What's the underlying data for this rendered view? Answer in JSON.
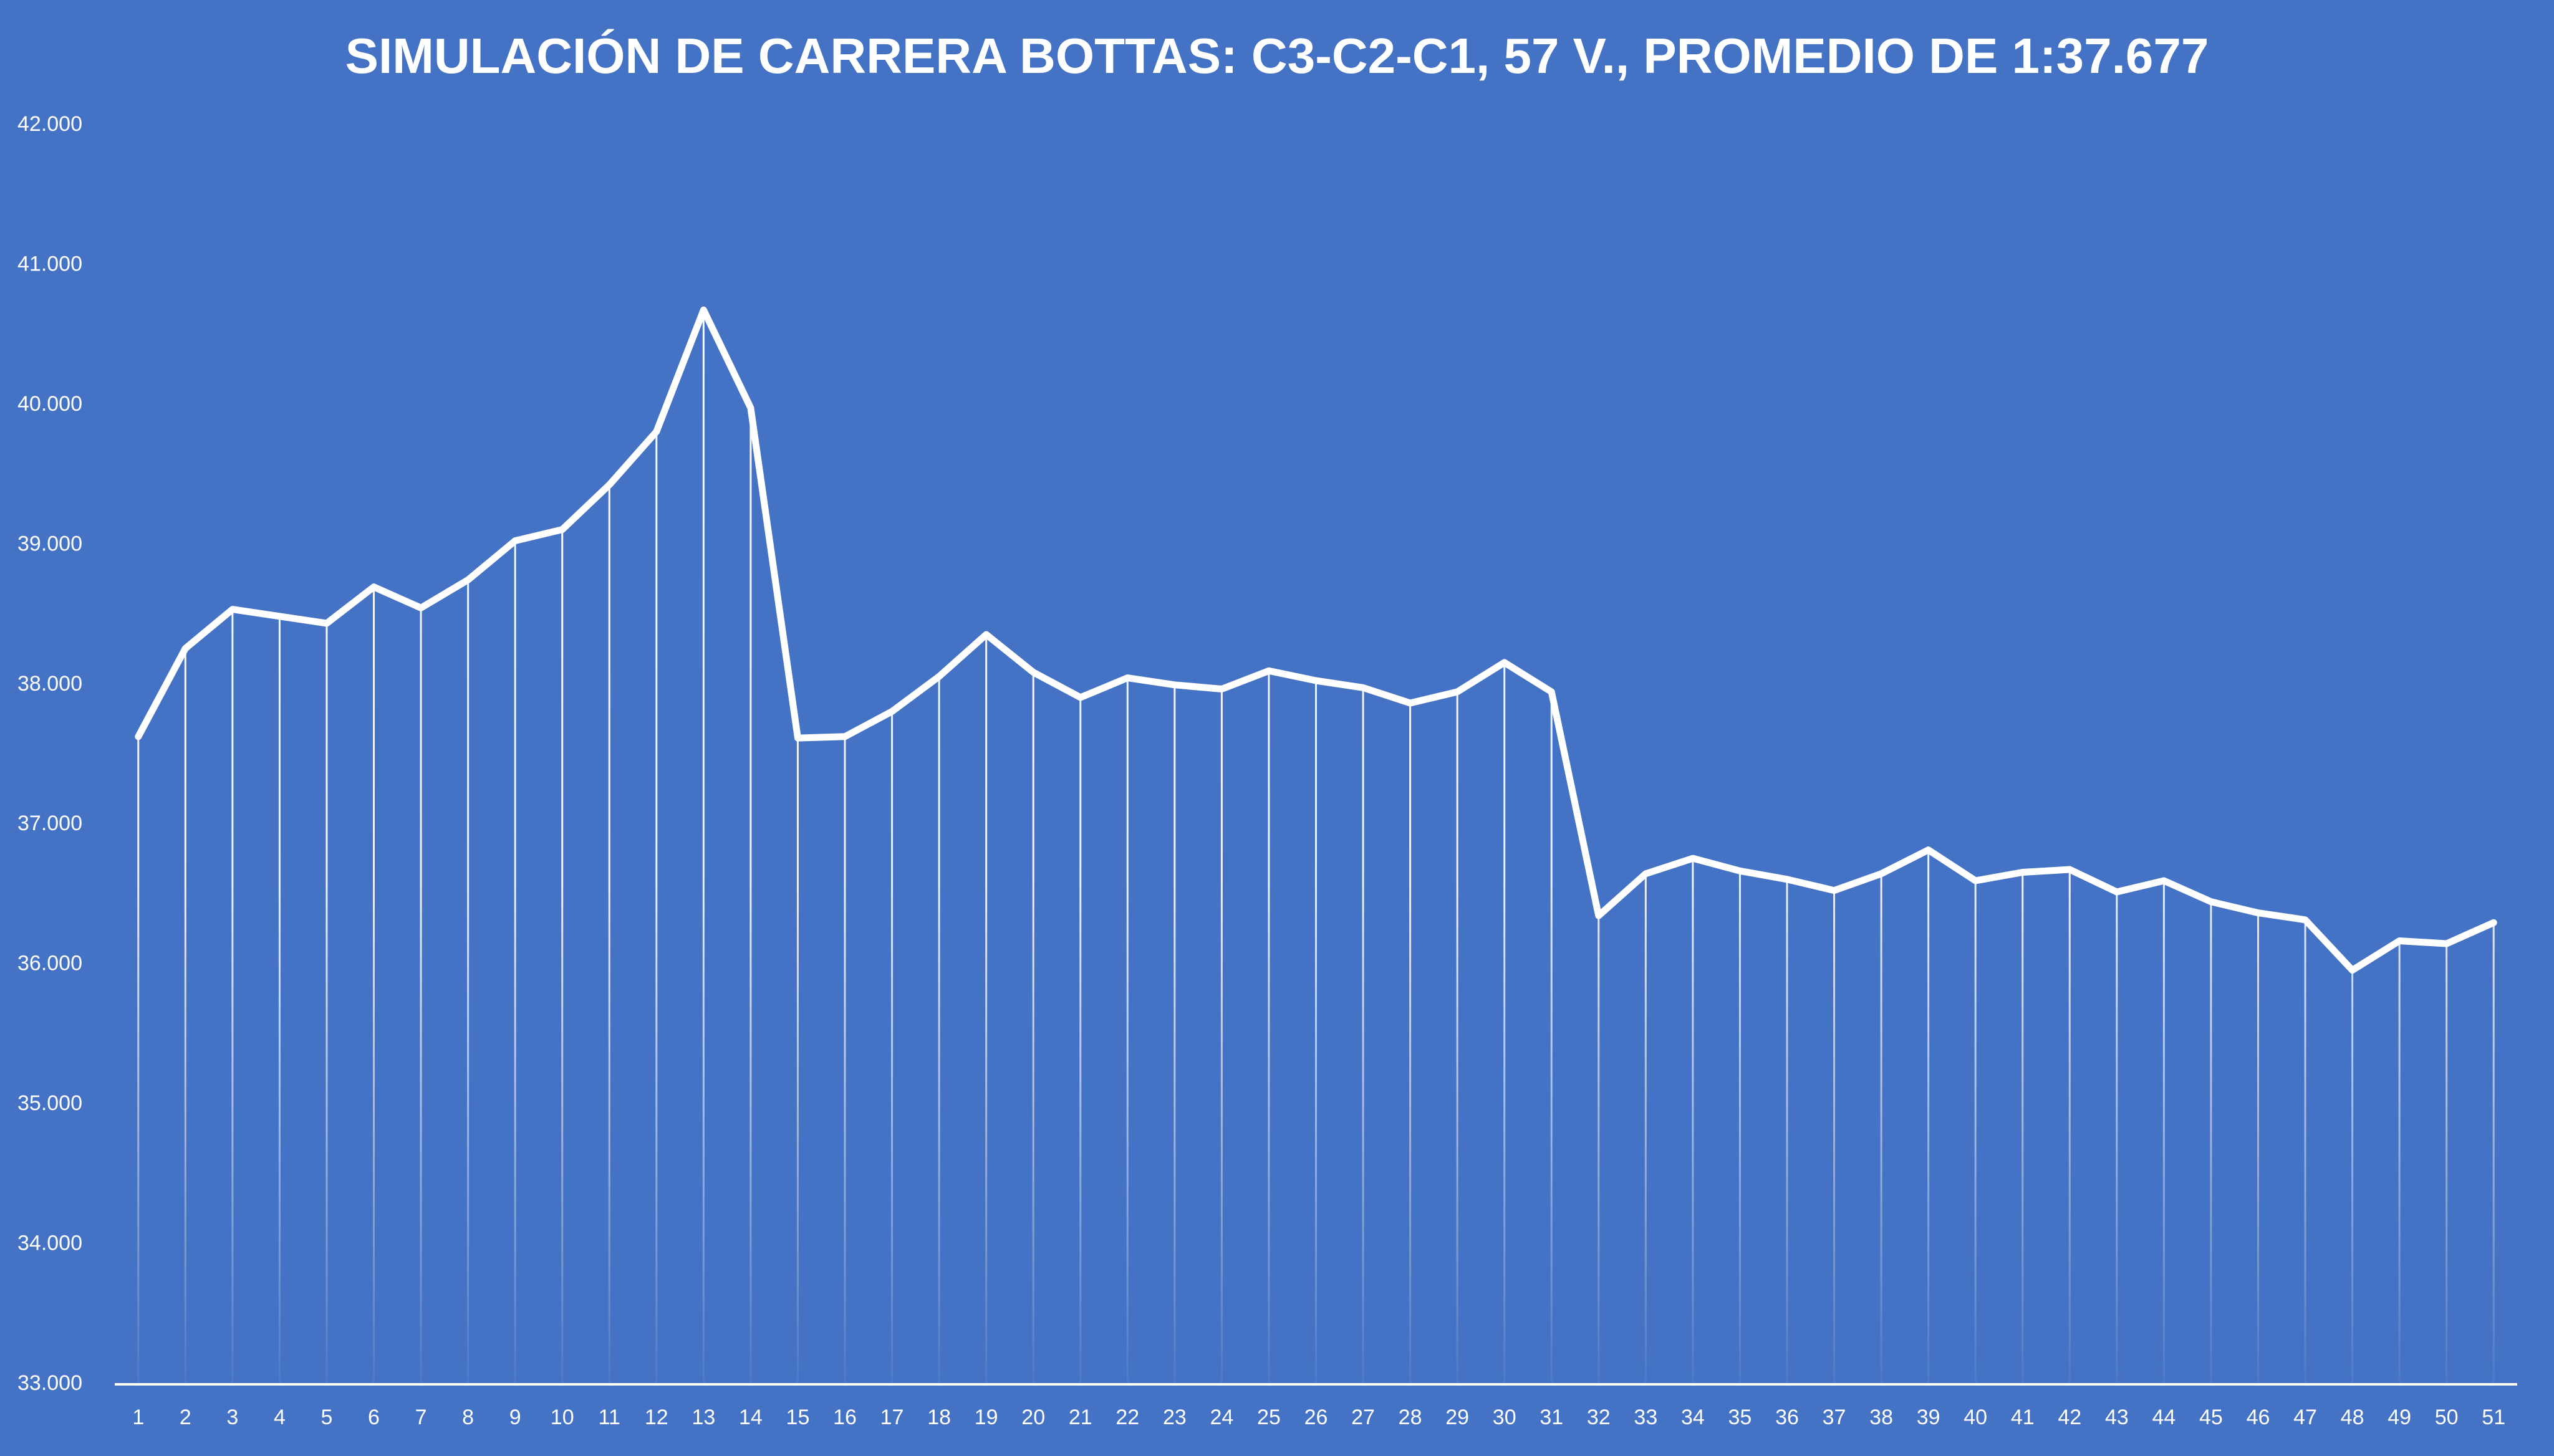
{
  "chart_data": {
    "type": "line",
    "title": "SIMULACIÓN DE CARRERA BOTTAS: C3-C2-C1, 57 V., PROMEDIO DE 1:37.677",
    "categories": [
      "1",
      "2",
      "3",
      "4",
      "5",
      "6",
      "7",
      "8",
      "9",
      "10",
      "11",
      "12",
      "13",
      "14",
      "15",
      "16",
      "17",
      "18",
      "19",
      "20",
      "21",
      "22",
      "23",
      "24",
      "25",
      "26",
      "27",
      "28",
      "29",
      "30",
      "31",
      "32",
      "33",
      "34",
      "35",
      "36",
      "37",
      "38",
      "39",
      "40",
      "41",
      "42",
      "43",
      "44",
      "45",
      "46",
      "47",
      "48",
      "49",
      "50",
      "51"
    ],
    "series": [
      {
        "color": "#ffffff",
        "values": [
          37.63,
          38.26,
          38.54,
          38.49,
          38.44,
          38.7,
          38.55,
          38.75,
          39.03,
          39.11,
          39.43,
          39.81,
          40.68,
          39.98,
          37.62,
          37.63,
          37.81,
          38.06,
          38.36,
          38.09,
          37.91,
          38.05,
          38.0,
          37.97,
          38.1,
          38.03,
          37.98,
          37.87,
          37.95,
          38.16,
          37.95,
          36.35,
          36.65,
          36.76,
          36.67,
          36.61,
          36.53,
          36.65,
          36.82,
          36.6,
          36.66,
          36.68,
          36.52,
          36.6,
          36.45,
          36.37,
          36.32,
          35.96,
          36.17,
          36.15,
          36.3
        ]
      }
    ],
    "ylim": [
      33,
      42
    ],
    "yticks": [
      {
        "value": 33,
        "label": "33.000"
      },
      {
        "value": 34,
        "label": "34.000"
      },
      {
        "value": 35,
        "label": "35.000"
      },
      {
        "value": 36,
        "label": "36.000"
      },
      {
        "value": 37,
        "label": "37.000"
      },
      {
        "value": 38,
        "label": "38.000"
      },
      {
        "value": 39,
        "label": "39.000"
      },
      {
        "value": 40,
        "label": "40.000"
      },
      {
        "value": 41,
        "label": "41.000"
      },
      {
        "value": 42,
        "label": "42.000"
      }
    ],
    "drop_lines": true,
    "grid": false
  }
}
